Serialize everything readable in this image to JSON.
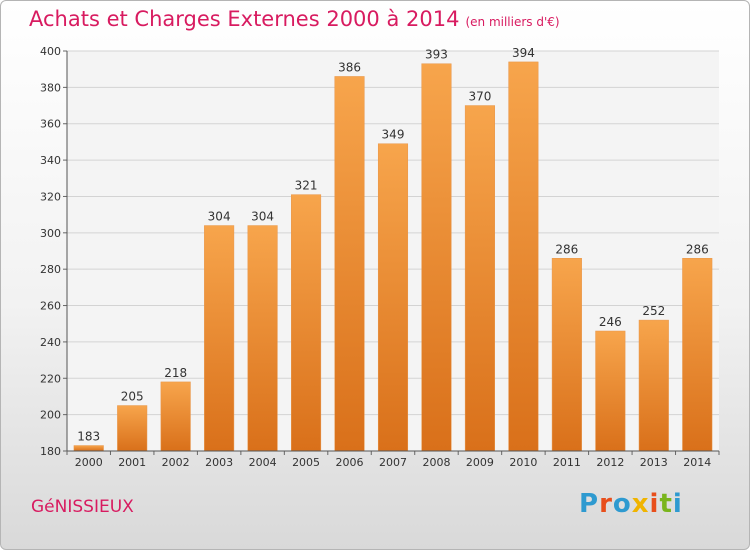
{
  "header": {
    "title": "Achats et Charges Externes 2000 à 2014",
    "subtitle": "(en milliers d'€)"
  },
  "footer": {
    "commune": "GéNISSIEUX",
    "logo": "Proxiti"
  },
  "colors": {
    "title": "#d81b60",
    "bar_light": "#f7a54c",
    "bar_dark": "#d9701a",
    "logo": [
      "#2e9ad0",
      "#e84e1b",
      "#2e9ad0",
      "#f0b400",
      "#e84e1b",
      "#7ab51d",
      "#2e9ad0"
    ]
  },
  "chart_data": {
    "type": "bar",
    "categories": [
      "2000",
      "2001",
      "2002",
      "2003",
      "2004",
      "2005",
      "2006",
      "2007",
      "2008",
      "2009",
      "2010",
      "2011",
      "2012",
      "2013",
      "2014"
    ],
    "values": [
      183,
      205,
      218,
      304,
      304,
      321,
      386,
      349,
      393,
      370,
      394,
      286,
      246,
      252,
      286
    ],
    "ylim": [
      180,
      400
    ],
    "yticks": [
      180,
      200,
      220,
      240,
      260,
      280,
      300,
      320,
      340,
      360,
      380,
      400
    ],
    "grid": true
  }
}
